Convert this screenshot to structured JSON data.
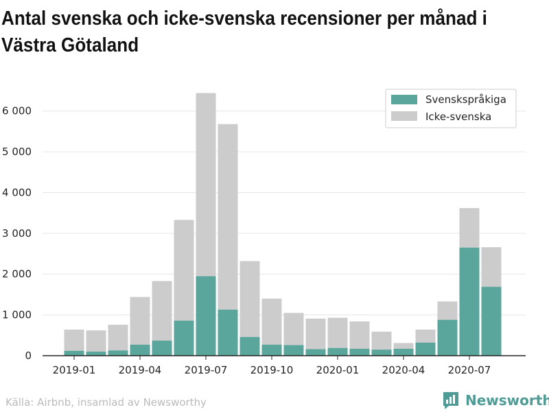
{
  "chart_data": {
    "type": "bar",
    "stacked": true,
    "title": "Antal svenska och icke-svenska recensioner per månad i Västra Götaland",
    "categories": [
      "2019-01",
      "2019-02",
      "2019-03",
      "2019-04",
      "2019-05",
      "2019-06",
      "2019-07",
      "2019-08",
      "2019-09",
      "2019-10",
      "2019-11",
      "2019-12",
      "2020-01",
      "2020-02",
      "2020-03",
      "2020-04",
      "2020-05",
      "2020-06",
      "2020-07",
      "2020-08"
    ],
    "x_tick_labels": [
      "2019-01",
      "2019-04",
      "2019-07",
      "2019-10",
      "2020-01",
      "2020-04",
      "2020-07"
    ],
    "series": [
      {
        "name": "Svenskspråkiga",
        "color": "#5aa59c",
        "values": [
          120,
          100,
          130,
          270,
          370,
          860,
          1950,
          1130,
          460,
          270,
          260,
          160,
          190,
          170,
          150,
          170,
          320,
          880,
          2650,
          1690
        ]
      },
      {
        "name": "Icke-svenska",
        "color": "#cccccc",
        "values": [
          520,
          520,
          630,
          1170,
          1460,
          2470,
          4490,
          4550,
          1860,
          1130,
          790,
          750,
          740,
          670,
          440,
          140,
          320,
          450,
          970,
          970
        ]
      }
    ],
    "ylim": [
      0,
      6500
    ],
    "y_ticks": [
      0,
      1000,
      2000,
      3000,
      4000,
      5000,
      6000
    ],
    "y_tick_labels": [
      "0",
      "1 000",
      "2 000",
      "3 000",
      "4 000",
      "5 000",
      "6 000"
    ],
    "grid": true,
    "legend_position": "top-right"
  },
  "source": "Källa: Airbnb, insamlad av Newsworthy",
  "brand": {
    "name": "Newsworthy",
    "icon": "bar-chart-logo-icon",
    "color": "#4f9b95"
  }
}
